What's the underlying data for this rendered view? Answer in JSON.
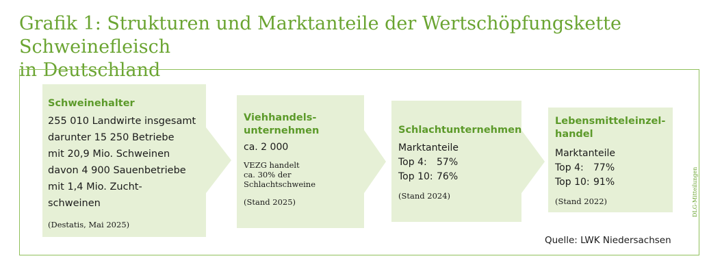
{
  "title": {
    "line1": "Grafik 1: Strukturen und Marktanteile der Wertschöpfungskette Schweinefleisch",
    "line2": "in Deutschland"
  },
  "boxes": [
    {
      "heading": "Schweinehalter",
      "lines": [
        "255 010 Landwirte insgesamt",
        "darunter 15 250 Betriebe",
        "mit 20,9 Mio. Schweinen",
        "davon 4 900 Sauenbetriebe",
        "mit 1,4 Mio. Zucht-",
        "schweinen"
      ],
      "note": "(Destatis, Mai 2025)"
    },
    {
      "heading_lines": [
        "Viehhandels-",
        "unternehmen"
      ],
      "value": "ca. 2 000",
      "small_lines": [
        "VEZG handelt",
        "ca. 30% der",
        "Schlachtschweine"
      ],
      "note": "(Stand 2025)"
    },
    {
      "heading": "Schlachtunternehmen",
      "label": "Marktanteile",
      "rows": [
        {
          "k": "Top 4:",
          "v": "57%"
        },
        {
          "k": "Top 10:",
          "v": "76%"
        }
      ],
      "note": "(Stand 2024)"
    },
    {
      "heading_lines": [
        "Lebensmitteleinzel-",
        "handel"
      ],
      "label": "Marktanteile",
      "rows": [
        {
          "k": "Top 4:",
          "v": "77%"
        },
        {
          "k": "Top 10:",
          "v": "91%"
        }
      ],
      "note": "(Stand 2022)"
    }
  ],
  "source": "Quelle: LWK Niedersachsen",
  "side_label": "DLG-Mitteilungen",
  "colors": {
    "accent": "#6aa431",
    "box_fill": "#e6f0d6"
  }
}
